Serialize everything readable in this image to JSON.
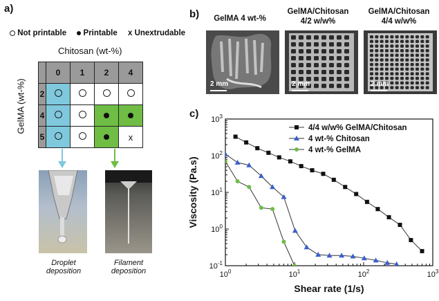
{
  "panel_a": {
    "label": "a)",
    "legend": {
      "not_printable": "Not printable",
      "printable": "Printable",
      "unextrudable": "Unextrudable",
      "x_symbol": "x"
    },
    "col_title": "Chitosan (wt-%)",
    "row_title": "GelMA (wt-%)",
    "col_headers": [
      "0",
      "1",
      "2",
      "4"
    ],
    "row_headers": [
      "2",
      "4",
      "5"
    ],
    "grid": [
      [
        "o",
        "o",
        "o",
        "o"
      ],
      [
        "o",
        "o",
        "•",
        "•"
      ],
      [
        "o",
        "o",
        "•",
        "x"
      ]
    ],
    "cell_colors": [
      [
        "blue",
        "white",
        "white",
        "white"
      ],
      [
        "blue",
        "white",
        "green",
        "green"
      ],
      [
        "blue",
        "white",
        "green",
        "white"
      ]
    ],
    "colors": {
      "blue": "#7fc8dd",
      "green": "#6fbd45",
      "header": "#9a9a9a"
    },
    "captions": {
      "droplet": [
        "Droplet",
        "deposition"
      ],
      "filament": [
        "Filament",
        "deposition"
      ]
    }
  },
  "panel_b": {
    "label": "b)",
    "images": [
      {
        "title": [
          "GelMA 4 wt-%"
        ],
        "scale": "2 mm"
      },
      {
        "title": [
          "GelMA/Chitosan",
          "4/2 w/w%"
        ],
        "scale": "2 mm"
      },
      {
        "title": [
          "GelMA/Chitosan",
          "4/4 w/w%"
        ],
        "scale": "2 mm"
      }
    ]
  },
  "panel_c": {
    "label": "c)",
    "chart_data": {
      "type": "line",
      "xlabel": "Shear rate (1/s)",
      "ylabel": "Viscosity (Pa.s)",
      "xscale": "log",
      "yscale": "log",
      "xlim": [
        1,
        1000
      ],
      "ylim": [
        0.1,
        1000
      ],
      "x_ticks": [
        "10^0",
        "10^1",
        "10^2",
        "10^3"
      ],
      "y_ticks": [
        "10^-1",
        "10^0",
        "10^1",
        "10^2",
        "10^3"
      ],
      "legend_position": "top-right",
      "series": [
        {
          "name": "4/4 w/w% GelMA/Chitosan",
          "marker": "square",
          "color": "#111111",
          "x": [
            1.4,
            2.0,
            2.9,
            4.2,
            6.0,
            8.7,
            12.5,
            18,
            26,
            37,
            54,
            78,
            112,
            160,
            232,
            335,
            483,
            700
          ],
          "y": [
            330,
            230,
            160,
            120,
            90,
            70,
            52,
            40,
            32,
            22,
            14,
            9,
            5.5,
            3.5,
            2.1,
            1.3,
            0.5,
            0.25
          ]
        },
        {
          "name": "4 wt-% Chitosan",
          "marker": "triangle",
          "color": "#3a5fcd",
          "x": [
            1.0,
            1.5,
            2.2,
            3.3,
            4.8,
            7.0,
            10.2,
            15,
            22,
            32,
            48,
            70,
            102,
            150,
            220,
            300
          ],
          "y": [
            110,
            65,
            55,
            28,
            14,
            7.5,
            0.9,
            0.32,
            0.2,
            0.19,
            0.19,
            0.18,
            0.16,
            0.14,
            0.12,
            0.11
          ]
        },
        {
          "name": "4 wt-% GelMA",
          "marker": "circle",
          "color": "#6fbd45",
          "x": [
            1.0,
            1.5,
            2.2,
            3.3,
            4.8,
            7.0,
            10.0
          ],
          "y": [
            70,
            20,
            14,
            3.8,
            3.5,
            0.45,
            0.1
          ]
        }
      ]
    }
  }
}
